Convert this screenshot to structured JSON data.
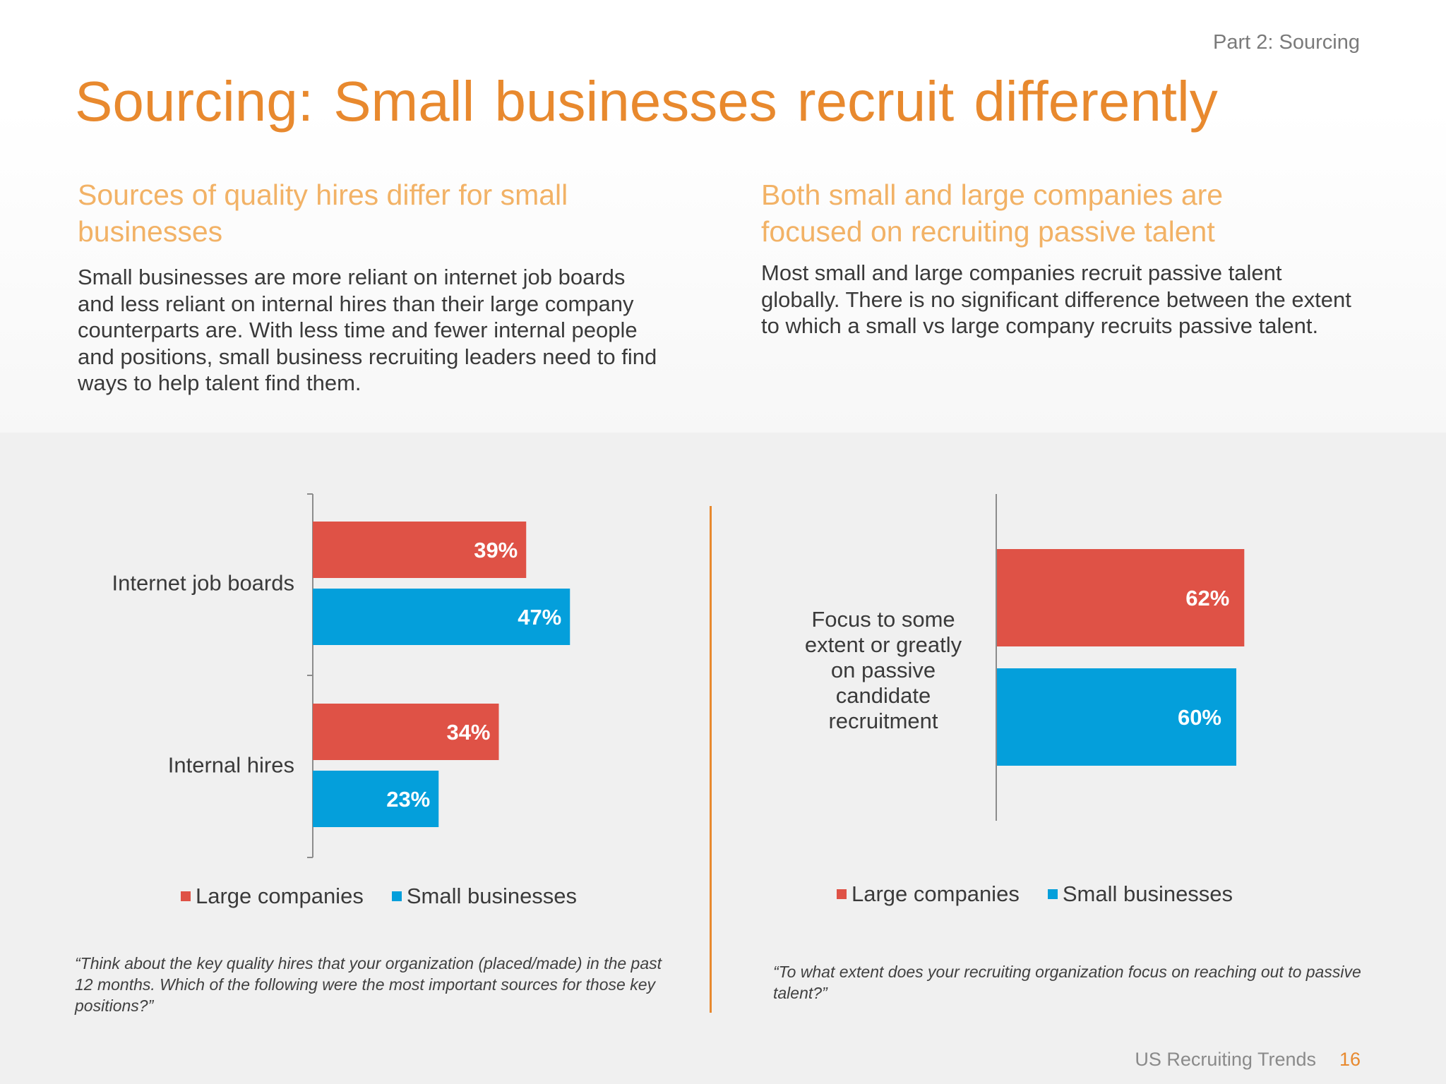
{
  "header": {
    "section_label": "Part 2: Sourcing",
    "title": "Sourcing: Small businesses recruit differently"
  },
  "left": {
    "heading": "Sources of quality hires differ for small businesses",
    "body": "Small businesses are more reliant on internet job boards and less reliant on internal hires than their large company counterparts are. With less time and fewer internal people and positions, small business recruiting leaders need to find ways to help talent find them.",
    "question": "“Think about the key quality hires that your organization (placed/made) in the past 12 months. Which of the following were the most important sources for those key positions?”"
  },
  "right": {
    "heading": "Both small and large companies are focused on recruiting passive talent",
    "body": "Most small and large companies recruit passive talent globally. There is no significant difference between the extent to which a small vs large company recruits passive talent.",
    "question": "“To what extent does your recruiting organization focus on reaching out to passive talent?”"
  },
  "footer": {
    "text": "US Recruiting Trends",
    "page": "16"
  },
  "colors": {
    "accent": "#e8892e",
    "large": "#df5246",
    "small": "#049fdb"
  },
  "chart_data": [
    {
      "type": "bar",
      "orientation": "horizontal",
      "categories": [
        "Internet job boards",
        "Internal hires"
      ],
      "series": [
        {
          "name": "Large companies",
          "values": [
            39,
            34
          ],
          "labels": [
            "39%",
            "34%"
          ],
          "color": "#df5246"
        },
        {
          "name": "Small businesses",
          "values": [
            47,
            23
          ],
          "labels": [
            "47%",
            "23%"
          ],
          "color": "#049fdb"
        }
      ],
      "unit": "%",
      "xlim": [
        0,
        100
      ],
      "legend": "bottom",
      "grid": false
    },
    {
      "type": "bar",
      "orientation": "horizontal",
      "categories": [
        "Focus to some extent or greatly on passive candidate recruitment"
      ],
      "series": [
        {
          "name": "Large companies",
          "values": [
            62
          ],
          "labels": [
            "62%"
          ],
          "color": "#df5246"
        },
        {
          "name": "Small businesses",
          "values": [
            60
          ],
          "labels": [
            "60%"
          ],
          "color": "#049fdb"
        }
      ],
      "unit": "%",
      "xlim": [
        0,
        100
      ],
      "legend": "bottom",
      "grid": false
    }
  ]
}
